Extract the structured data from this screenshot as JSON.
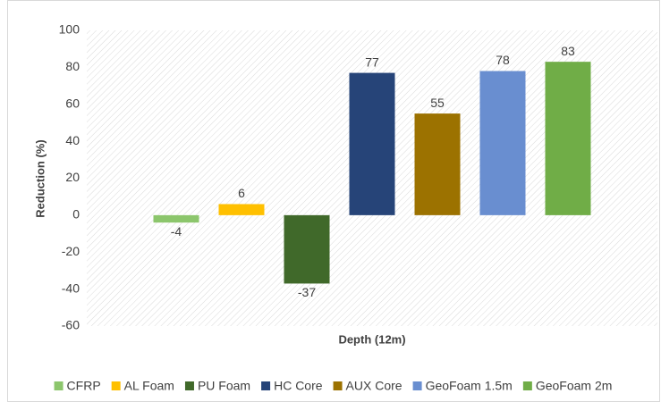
{
  "chart_data": {
    "type": "bar",
    "categories": [
      "Depth (12m)"
    ],
    "y_label": "Reduction (%)",
    "series": [
      {
        "name": "CFRP",
        "color": "#8cc66c",
        "values": [
          -4
        ]
      },
      {
        "name": "AL Foam",
        "color": "#ffc000",
        "values": [
          6
        ]
      },
      {
        "name": "PU Foam",
        "color": "#40692a",
        "values": [
          -37
        ]
      },
      {
        "name": "HC Core",
        "color": "#264478",
        "values": [
          77
        ]
      },
      {
        "name": "AUX Core",
        "color": "#9c7200",
        "values": [
          55
        ]
      },
      {
        "name": "GeoFoam 1.5m",
        "color": "#698ed0",
        "values": [
          78
        ]
      },
      {
        "name": "GeoFoam 2m",
        "color": "#70ad47",
        "values": [
          83
        ]
      }
    ],
    "ylim": [
      -60,
      100
    ],
    "yticks": [
      -60,
      -40,
      -20,
      0,
      20,
      40,
      60,
      80,
      100
    ],
    "grid": false,
    "legend": "bottom"
  }
}
